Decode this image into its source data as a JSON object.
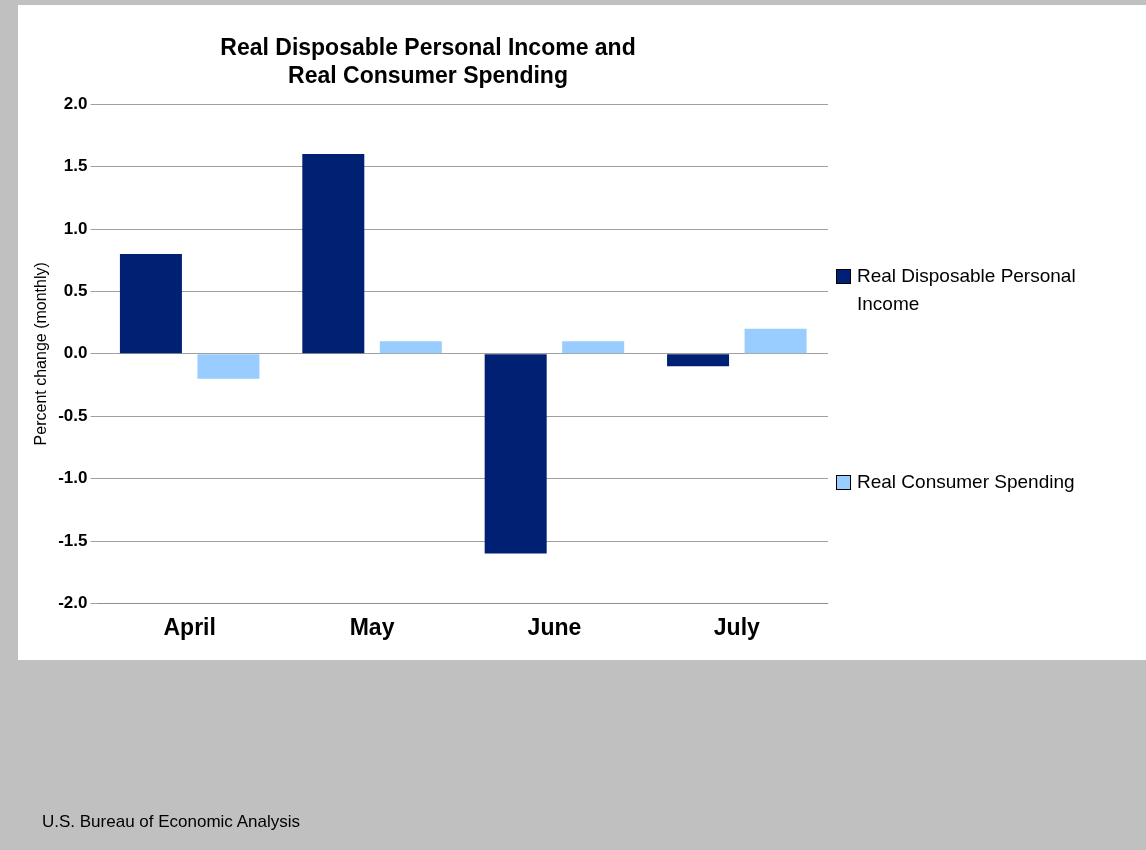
{
  "chart_data": {
    "type": "bar",
    "title": "Real Disposable Personal Income and\nReal Consumer Spending",
    "ylabel": "Percent change (monthly)",
    "categories": [
      "April",
      "May",
      "June",
      "July"
    ],
    "series": [
      {
        "name": "Real Disposable Personal Income",
        "color": "#002173",
        "values": [
          0.8,
          1.6,
          -1.6,
          -0.1
        ]
      },
      {
        "name": "Real Consumer Spending",
        "color": "#99ccff",
        "values": [
          -0.2,
          0.1,
          0.1,
          0.2
        ]
      }
    ],
    "ylim": [
      -2.0,
      2.0
    ],
    "yticks": [
      {
        "value": -2,
        "label": "-2.0"
      },
      {
        "value": -1.5,
        "label": "-1.5"
      },
      {
        "value": -1,
        "label": "-1.0"
      },
      {
        "value": -0.5,
        "label": "-0.5"
      },
      {
        "value": 0,
        "label": "0.0"
      },
      {
        "value": 0.5,
        "label": "0.5"
      },
      {
        "value": 1,
        "label": "1.0"
      },
      {
        "value": 1.5,
        "label": "1.5"
      },
      {
        "value": 2,
        "label": "2.0"
      }
    ],
    "grid": "y",
    "legend": "right",
    "annotations": [
      "U.S. Bureau of Economic Analysis"
    ]
  }
}
